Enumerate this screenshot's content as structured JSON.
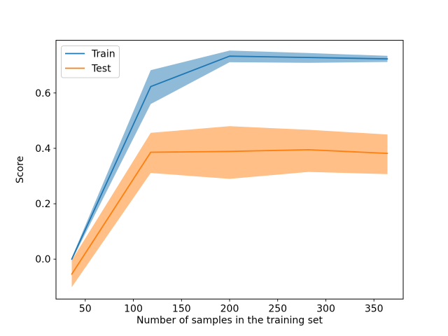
{
  "window": {
    "background": "#ffffff"
  },
  "chart_data": {
    "type": "line",
    "title": "",
    "xlabel": "Number of samples in the training set",
    "ylabel": "Score",
    "x": [
      36,
      118,
      200,
      282,
      364
    ],
    "series": [
      {
        "name": "Train",
        "color": "#1f77b4",
        "values": [
          0.0,
          0.623,
          0.733,
          0.728,
          0.723
        ],
        "band_low": [
          -0.005,
          0.56,
          0.711,
          0.709,
          0.712
        ],
        "band_high": [
          0.005,
          0.682,
          0.753,
          0.744,
          0.734
        ]
      },
      {
        "name": "Test",
        "color": "#ff7f0e",
        "values": [
          -0.054,
          0.386,
          0.389,
          0.395,
          0.382
        ],
        "band_low": [
          -0.101,
          0.311,
          0.29,
          0.315,
          0.307
        ],
        "band_high": [
          -0.004,
          0.456,
          0.48,
          0.467,
          0.45
        ]
      }
    ],
    "x_ticks": [
      50,
      100,
      150,
      200,
      250,
      300,
      350
    ],
    "x_tick_labels": [
      "50",
      "100",
      "150",
      "200",
      "250",
      "300",
      "350"
    ],
    "y_ticks": [
      0.0,
      0.2,
      0.4,
      0.6
    ],
    "y_tick_labels": [
      "0.0",
      "0.2",
      "0.4",
      "0.6"
    ],
    "xlim": [
      19.6,
      380.4
    ],
    "ylim": [
      -0.144,
      0.79
    ],
    "grid": false,
    "band_alpha": 0.5,
    "legend": {
      "position": "upper left",
      "entries": [
        "Train",
        "Test"
      ]
    }
  }
}
